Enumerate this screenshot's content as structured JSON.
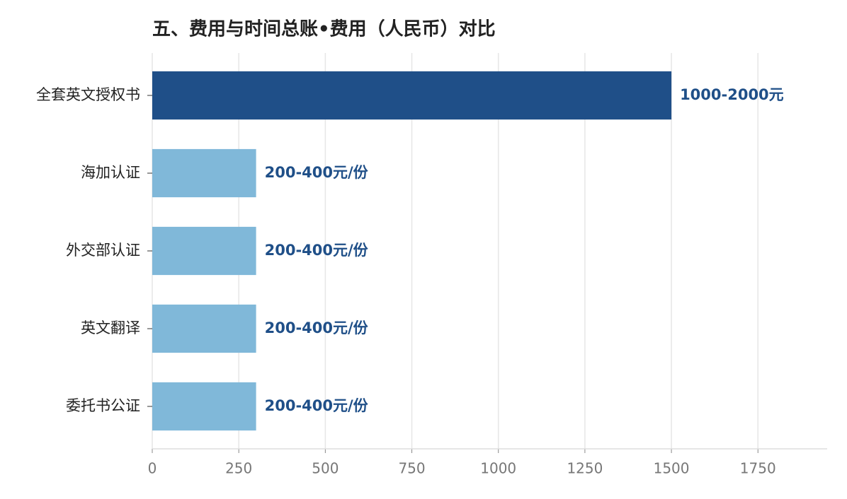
{
  "chart_data": {
    "type": "barh",
    "title": "五、费用与时间总账•费用（人民币）对比",
    "categories": [
      "全套英文授权书",
      "海加认证",
      "外交部认证",
      "英文翻译",
      "委托书公证"
    ],
    "values": [
      1500,
      300,
      300,
      300,
      300
    ],
    "value_labels": [
      "1000-2000元",
      "200-400元/份",
      "200-400元/份",
      "200-400元/份",
      "200-400元/份"
    ],
    "colors": [
      "#1f4f88",
      "#80b8d9",
      "#80b8d9",
      "#80b8d9",
      "#80b8d9"
    ],
    "label_color": "#1f4f88",
    "xlim": [
      0,
      1950
    ],
    "xticks": [
      0,
      250,
      500,
      750,
      1000,
      1250,
      1500,
      1750
    ],
    "grid": true
  }
}
